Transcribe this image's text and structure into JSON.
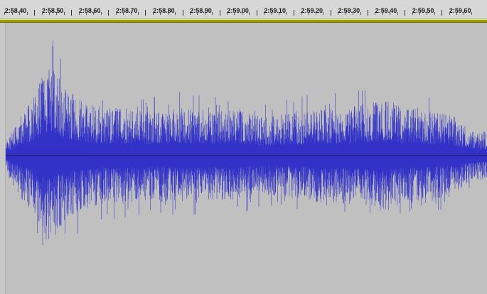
{
  "timeline": {
    "tick_labels": [
      "2:58.40",
      "2:58.50",
      "2:58.60",
      "2:58.70",
      "2:58.80",
      "2:58.90",
      "2:59.00",
      "2:59.10",
      "2:59.20",
      "2:59.30",
      "2:59.40",
      "2:59.50",
      "2:59.60"
    ]
  },
  "waveform": {
    "color": "#3232c8",
    "center_line_color": "#000000",
    "background": "#c0c0c0"
  },
  "colors": {
    "ruler_background": "#d7d7d7",
    "play_region_bar": "#9c9b00",
    "track_background": "#c0c0c0"
  }
}
